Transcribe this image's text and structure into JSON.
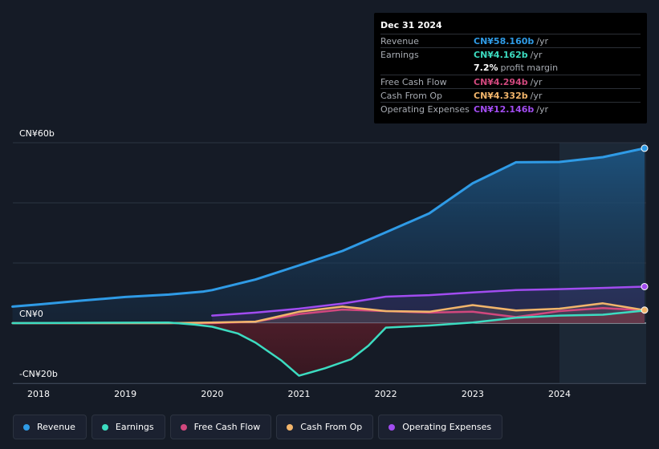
{
  "chart_data": {
    "type": "area",
    "title": "",
    "xlabel": "",
    "ylabel": "",
    "ylim": [
      -20,
      60
    ],
    "y_ticks": [
      {
        "value": 60,
        "label": "CN¥60b"
      },
      {
        "value": 0,
        "label": "CN¥0"
      },
      {
        "value": -20,
        "label": "-CN¥20b"
      }
    ],
    "x_ticks": [
      {
        "value": 2018,
        "label": "2018"
      },
      {
        "value": 2019,
        "label": "2019"
      },
      {
        "value": 2020,
        "label": "2020"
      },
      {
        "value": 2021,
        "label": "2021"
      },
      {
        "value": 2022,
        "label": "2022"
      },
      {
        "value": 2023,
        "label": "2023"
      },
      {
        "value": 2024,
        "label": "2024"
      }
    ],
    "xlim": [
      2017.7,
      2024.98
    ],
    "forecast_start": 2024.0,
    "series": [
      {
        "name": "Revenue",
        "color": "#2f9be6",
        "points": [
          [
            2017.7,
            5.5
          ],
          [
            2018.0,
            6.2
          ],
          [
            2018.5,
            7.5
          ],
          [
            2019.0,
            8.7
          ],
          [
            2019.5,
            9.5
          ],
          [
            2019.9,
            10.5
          ],
          [
            2020.0,
            11.0
          ],
          [
            2020.5,
            14.5
          ],
          [
            2021.0,
            19.2
          ],
          [
            2021.5,
            24.0
          ],
          [
            2022.0,
            30.2
          ],
          [
            2022.5,
            36.5
          ],
          [
            2023.0,
            46.5
          ],
          [
            2023.5,
            53.5
          ],
          [
            2024.0,
            53.6
          ],
          [
            2024.5,
            55.2
          ],
          [
            2024.98,
            58.16
          ]
        ]
      },
      {
        "name": "Earnings",
        "color": "#3cdcc1",
        "points": [
          [
            2017.7,
            0.0
          ],
          [
            2018.5,
            0.1
          ],
          [
            2019.5,
            0.2
          ],
          [
            2019.8,
            -0.5
          ],
          [
            2020.0,
            -1.2
          ],
          [
            2020.3,
            -3.5
          ],
          [
            2020.5,
            -6.5
          ],
          [
            2020.8,
            -12.5
          ],
          [
            2021.0,
            -17.5
          ],
          [
            2021.3,
            -15.0
          ],
          [
            2021.6,
            -12.0
          ],
          [
            2021.8,
            -7.5
          ],
          [
            2022.0,
            -1.5
          ],
          [
            2022.5,
            -0.8
          ],
          [
            2023.0,
            0.2
          ],
          [
            2023.5,
            1.8
          ],
          [
            2024.0,
            2.5
          ],
          [
            2024.5,
            2.8
          ],
          [
            2024.98,
            4.162
          ]
        ]
      },
      {
        "name": "Free Cash Flow",
        "color": "#d1487e",
        "points": [
          [
            2017.7,
            0.0
          ],
          [
            2018.5,
            0.0
          ],
          [
            2019.5,
            0.0
          ],
          [
            2020.0,
            0.0
          ],
          [
            2020.5,
            0.5
          ],
          [
            2021.0,
            3.0
          ],
          [
            2021.5,
            4.5
          ],
          [
            2022.0,
            4.0
          ],
          [
            2022.5,
            3.5
          ],
          [
            2023.0,
            3.8
          ],
          [
            2023.5,
            2.0
          ],
          [
            2024.0,
            4.0
          ],
          [
            2024.5,
            5.0
          ],
          [
            2024.98,
            4.294
          ]
        ]
      },
      {
        "name": "Cash From Op",
        "color": "#f2b56b",
        "points": [
          [
            2017.7,
            0.0
          ],
          [
            2018.5,
            0.0
          ],
          [
            2019.5,
            0.0
          ],
          [
            2020.0,
            0.2
          ],
          [
            2020.5,
            0.5
          ],
          [
            2021.0,
            3.8
          ],
          [
            2021.5,
            5.5
          ],
          [
            2022.0,
            4.0
          ],
          [
            2022.5,
            3.8
          ],
          [
            2023.0,
            6.0
          ],
          [
            2023.5,
            4.2
          ],
          [
            2024.0,
            4.8
          ],
          [
            2024.5,
            6.6
          ],
          [
            2024.98,
            4.332
          ]
        ]
      },
      {
        "name": "Operating Expenses",
        "color": "#a14cf0",
        "points": [
          [
            2020.0,
            2.5
          ],
          [
            2020.5,
            3.5
          ],
          [
            2021.0,
            4.8
          ],
          [
            2021.5,
            6.5
          ],
          [
            2022.0,
            8.8
          ],
          [
            2022.5,
            9.3
          ],
          [
            2023.0,
            10.2
          ],
          [
            2023.5,
            11.0
          ],
          [
            2024.0,
            11.3
          ],
          [
            2024.5,
            11.7
          ],
          [
            2024.98,
            12.146
          ]
        ]
      }
    ]
  },
  "tooltip": {
    "date": "Dec 31 2024",
    "rows": [
      {
        "label": "Revenue",
        "value": "CN¥58.160b",
        "unit": "/yr",
        "color": "#2f9be6"
      },
      {
        "label": "Earnings",
        "value": "CN¥4.162b",
        "unit": "/yr",
        "color": "#3cdcc1"
      },
      {
        "label": "",
        "value": "7.2%",
        "unit": "profit margin",
        "color": "#ffffff"
      },
      {
        "label": "Free Cash Flow",
        "value": "CN¥4.294b",
        "unit": "/yr",
        "color": "#d1487e"
      },
      {
        "label": "Cash From Op",
        "value": "CN¥4.332b",
        "unit": "/yr",
        "color": "#f2b56b"
      },
      {
        "label": "Operating Expenses",
        "value": "CN¥12.146b",
        "unit": "/yr",
        "color": "#a14cf0"
      }
    ]
  },
  "legend": [
    {
      "label": "Revenue",
      "color": "#2f9be6"
    },
    {
      "label": "Earnings",
      "color": "#3cdcc1"
    },
    {
      "label": "Free Cash Flow",
      "color": "#d1487e"
    },
    {
      "label": "Cash From Op",
      "color": "#f2b56b"
    },
    {
      "label": "Operating Expenses",
      "color": "#a14cf0"
    }
  ]
}
